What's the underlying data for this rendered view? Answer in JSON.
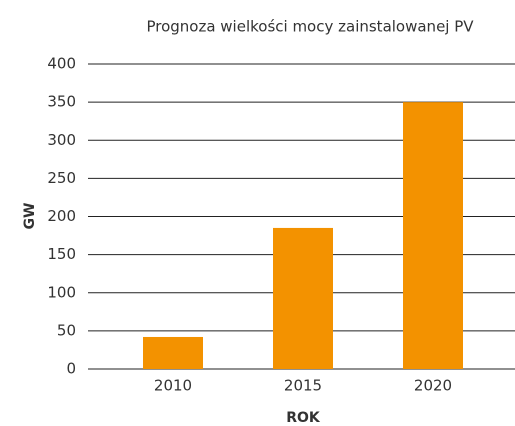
{
  "chart_data": {
    "type": "bar",
    "title": "Prognoza wielkości mocy zainstalowanej PV",
    "x_label": "ROK",
    "y_label": "GW",
    "categories": [
      "2010",
      "2015",
      "2020"
    ],
    "values": [
      42,
      185,
      350
    ],
    "color": "#f39200",
    "ylim": [
      0,
      400
    ],
    "yticks": [
      0,
      50,
      100,
      150,
      200,
      250,
      300,
      350,
      400
    ],
    "grid": true
  }
}
